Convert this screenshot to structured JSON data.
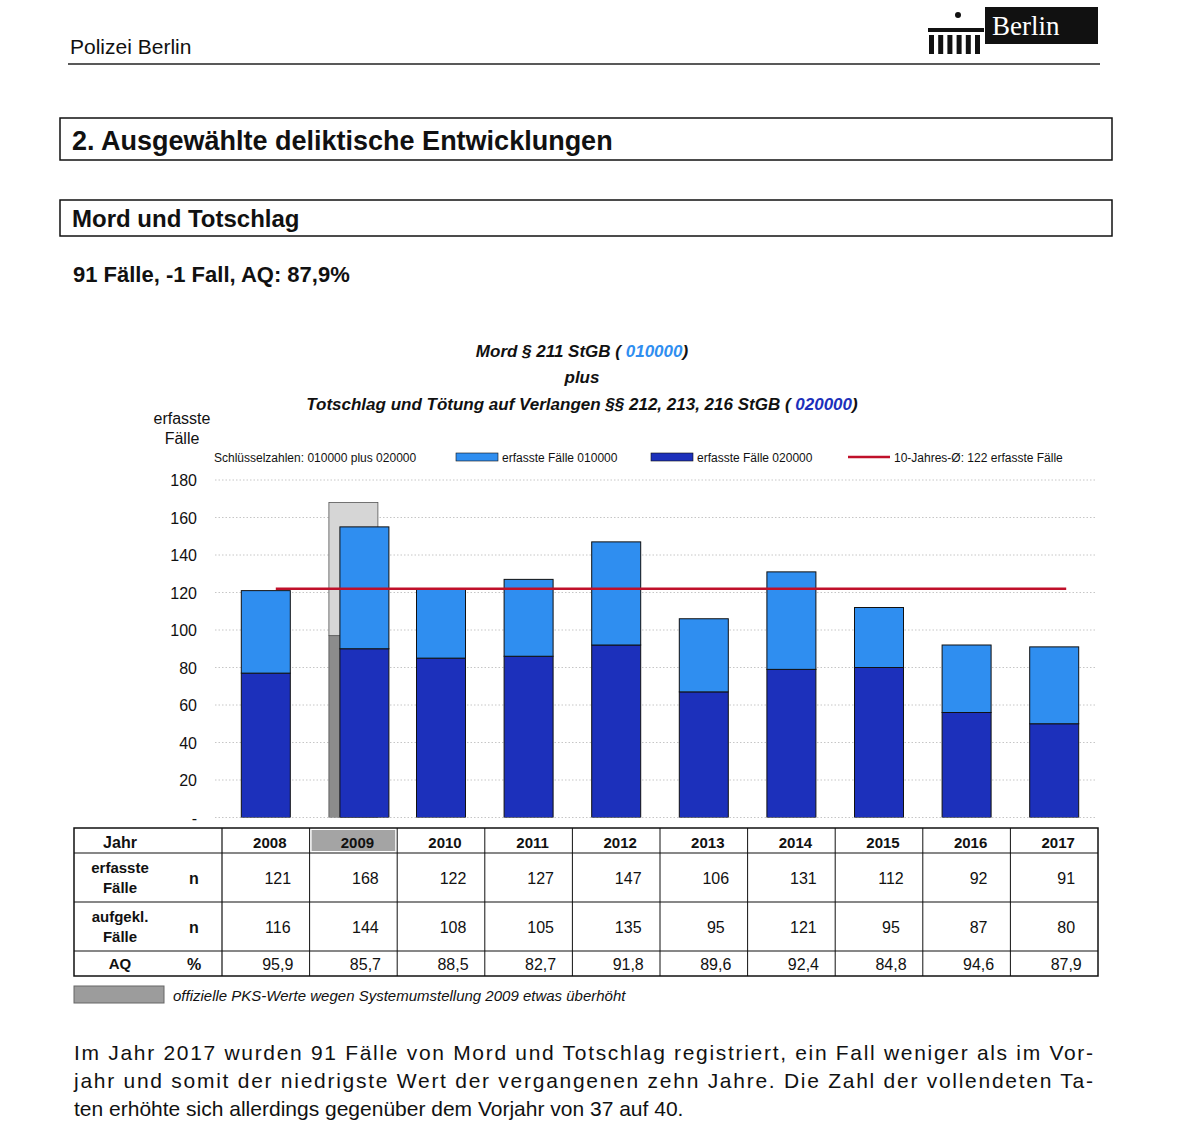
{
  "page": {
    "header": "Polizei Berlin",
    "logo": "Berlin",
    "section": "2. Ausgewählte deliktische Entwicklungen",
    "subsection": "Mord und Totschlag",
    "summary": "91 Fälle, -1 Fall, AQ: 87,9%",
    "paragraph": [
      "Im Jahr 2017 wurden 91 Fälle von Mord und Totschlag registriert, ein Fall weniger als im Vor-",
      "jahr und somit der niedrigste Wert der vergangenen zehn Jahre. Die Zahl der vollendeten Ta-",
      "ten erhöhte sich allerdings gegenüber dem Vorjahr von 37 auf 40."
    ]
  },
  "chart_data": {
    "type": "bar",
    "stacked": true,
    "grid": true,
    "title": [
      "Mord § 211 StGB ( ",
      "010000",
      ")"
    ],
    "subtitle": "plus",
    "title2": [
      "Totschlag und Tötung auf Verlangen §§ 212, 213, 216 StGB ( ",
      "020000",
      ")"
    ],
    "y_label": "erfasste Fälle",
    "legend_prefix": "Schlüsselzahlen: 010000 plus 020000",
    "categories": [
      "2008",
      "2009",
      "2010",
      "2011",
      "2012",
      "2013",
      "2014",
      "2015",
      "2016",
      "2017"
    ],
    "series": [
      {
        "name": "erfasste Fälle 010000",
        "color": "#2f8ef0",
        "values": [
          44,
          65,
          37,
          41,
          55,
          39,
          52,
          32,
          36,
          41
        ]
      },
      {
        "name": "erfasste Fälle 020000",
        "color": "#1c30bb",
        "values": [
          77,
          90,
          85,
          86,
          92,
          67,
          79,
          80,
          56,
          50
        ]
      }
    ],
    "reference": {
      "label": "offizielle PKS-Werte wegen Systemumstellung 2009 etwas überhöht",
      "color": "#d6d6d6",
      "lower_color": "#8c8c8c",
      "lower": [
        null,
        97,
        null,
        null,
        null,
        null,
        null,
        null,
        null,
        null
      ],
      "upper": [
        null,
        71,
        null,
        null,
        null,
        null,
        null,
        null,
        null,
        null
      ]
    },
    "reference_line": {
      "label": "10-Jahres-Ø: 122 erfasste Fälle",
      "value": 122,
      "color": "#c0102a"
    },
    "ylim": [
      0,
      180
    ],
    "yticks": [
      {
        "value": 0,
        "label": "-"
      },
      20,
      40,
      60,
      80,
      100,
      120,
      140,
      160,
      180
    ],
    "table": {
      "header": "Jahr",
      "rows": [
        {
          "label": "erfasste Fälle",
          "unit": "n",
          "values": [
            121,
            168,
            122,
            127,
            147,
            106,
            131,
            112,
            92,
            91
          ]
        },
        {
          "label": "aufgekl. Fälle",
          "unit": "n",
          "values": [
            116,
            144,
            108,
            105,
            135,
            95,
            121,
            95,
            87,
            80
          ]
        },
        {
          "label": "AQ",
          "unit": "%",
          "values": [
            "95,9",
            "85,7",
            "88,5",
            "82,7",
            "91,8",
            "89,6",
            "92,4",
            "84,8",
            "94,6",
            "87,9"
          ]
        }
      ]
    }
  }
}
